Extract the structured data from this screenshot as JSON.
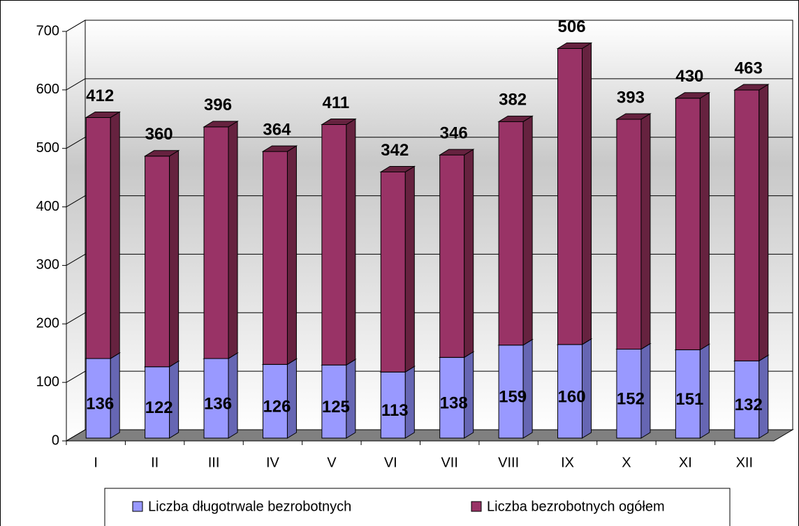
{
  "chart_data": {
    "type": "bar",
    "stacked": true,
    "categories": [
      "I",
      "II",
      "III",
      "IV",
      "V",
      "VI",
      "VII",
      "VIII",
      "IX",
      "X",
      "XI",
      "XII"
    ],
    "series": [
      {
        "name": "Liczba długotrwale bezrobotnych",
        "color": "#9999ff",
        "side": "#6666b3",
        "values": [
          136,
          122,
          136,
          126,
          125,
          113,
          138,
          159,
          160,
          152,
          151,
          132
        ]
      },
      {
        "name": "Liczba bezrobotnych ogółem",
        "color": "#993366",
        "side": "#66223f",
        "values": [
          412,
          360,
          396,
          364,
          411,
          342,
          346,
          382,
          506,
          393,
          430,
          463
        ]
      }
    ],
    "ylim": [
      0,
      700
    ],
    "yticks": [
      0,
      100,
      200,
      300,
      400,
      500,
      600,
      700
    ],
    "grid": true,
    "legend": "bottom"
  }
}
